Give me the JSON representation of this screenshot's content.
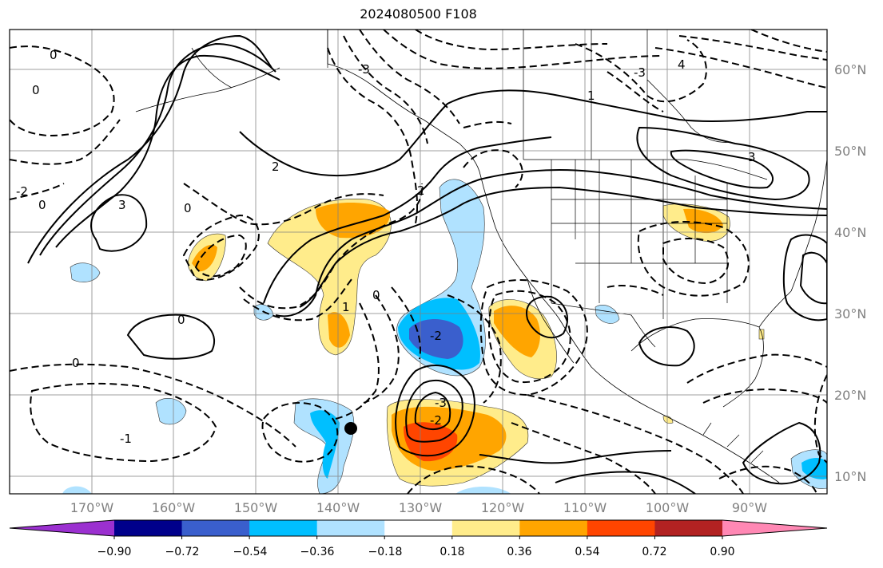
{
  "title": "2024080500 F108",
  "map": {
    "latitude_labels": [
      "60°N",
      "50°N",
      "40°N",
      "30°N",
      "20°N",
      "10°N"
    ],
    "longitude_labels": [
      "170°W",
      "160°W",
      "150°W",
      "140°W",
      "130°W",
      "120°W",
      "110°W",
      "100°W",
      "90°W"
    ],
    "grid": true,
    "marker": "storm-center-dot",
    "contour_labels": [
      "0",
      "0",
      "0",
      "0",
      "0",
      "0",
      "0",
      "-1",
      "1",
      "1",
      "-2",
      "2",
      "2",
      "-2",
      "-2",
      "3",
      "-3",
      "3",
      "-3",
      "-3",
      "4"
    ]
  },
  "colorbar": {
    "tick_labels": [
      "−0.90",
      "−0.72",
      "−0.54",
      "−0.36",
      "−0.18",
      "0.18",
      "0.36",
      "0.54",
      "0.72",
      "0.90"
    ],
    "colors": [
      "#9b30d0",
      "#00008b",
      "#3a5fcd",
      "#00bfff",
      "#b0e2ff",
      "#ffffff",
      "#ffec8b",
      "#ffa500",
      "#ff4500",
      "#b22222",
      "#ff88b4"
    ]
  }
}
